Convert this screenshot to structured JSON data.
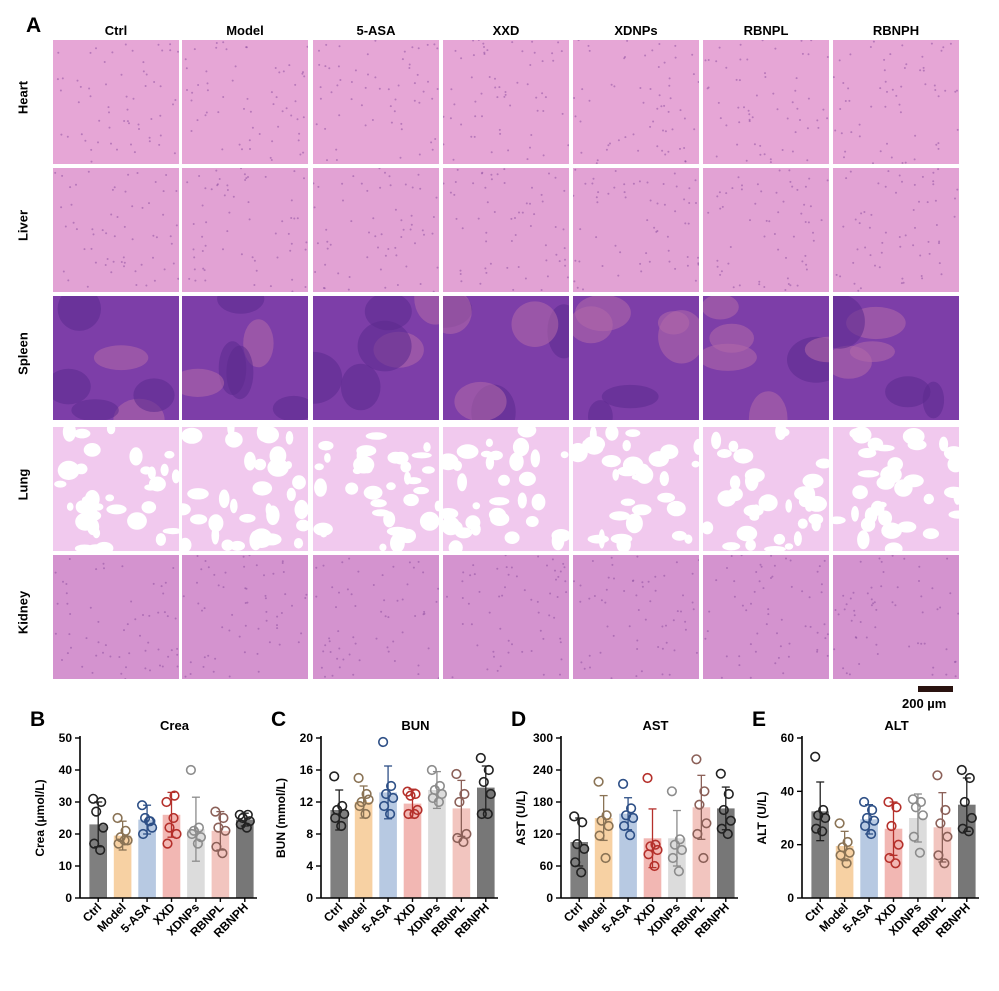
{
  "panel_a": {
    "letter": "A",
    "columns": [
      "Ctrl",
      "Model",
      "5-ASA",
      "XXD",
      "XDNPs",
      "RBNPL",
      "RBNPH"
    ],
    "rows": [
      {
        "name": "Heart",
        "tint": "#e6a6d6"
      },
      {
        "name": "Liver",
        "tint": "#e2a2d4"
      },
      {
        "name": "Spleen",
        "tint": "#7d3ea8"
      },
      {
        "name": "Lung",
        "tint": "#f1c9ee"
      },
      {
        "name": "Kidney",
        "tint": "#d493cf"
      }
    ],
    "scale_bar": "200 µm"
  },
  "colors": {
    "Ctrl": "#7f7f7f",
    "Model": "#f7d1a3",
    "5-ASA": "#b7c9e2",
    "XXD": "#f2b7b3",
    "XDNPs": "#dcdcdc",
    "RBNPL": "#f2c5bf",
    "RBNPH": "#777777"
  },
  "point_colors": {
    "Ctrl": "#222222",
    "Model": "#8a7355",
    "5-ASA": "#2d4f86",
    "XXD": "#b5302b",
    "XDNPs": "#8c8c8c",
    "RBNPL": "#8b6058",
    "RBNPH": "#222222"
  },
  "chart_data": [
    {
      "letter": "B",
      "type": "bar",
      "title": "Crea",
      "ylabel": "Crea (μmol/L)",
      "categories": [
        "Ctrl",
        "Model",
        "5-ASA",
        "XXD",
        "XDNPs",
        "RBNPL",
        "RBNPH"
      ],
      "ylim": [
        0,
        50
      ],
      "yticks": [
        0,
        10,
        20,
        30,
        40,
        50
      ],
      "values": [
        23,
        19.5,
        24.5,
        26,
        21.5,
        21,
        24.5
      ],
      "sd": [
        7,
        4.5,
        4.5,
        7,
        10,
        6,
        2
      ],
      "points": [
        [
          31,
          30,
          27,
          22,
          17,
          15
        ],
        [
          25,
          21,
          19,
          18,
          17,
          18
        ],
        [
          29,
          24,
          25,
          22,
          20,
          24
        ],
        [
          30,
          32,
          22,
          20,
          17,
          25
        ],
        [
          40,
          22,
          21,
          19,
          20,
          17
        ],
        [
          27,
          25,
          22,
          21,
          16,
          14
        ],
        [
          26,
          26,
          25,
          24,
          23,
          22
        ]
      ]
    },
    {
      "letter": "C",
      "type": "bar",
      "title": "BUN",
      "ylabel": "BUN (mmol/L)",
      "categories": [
        "Ctrl",
        "Model",
        "5-ASA",
        "XXD",
        "XDNPs",
        "RBNPL",
        "RBNPH"
      ],
      "ylim": [
        0,
        20
      ],
      "yticks": [
        0,
        4,
        8,
        12,
        16,
        20
      ],
      "values": [
        11,
        12,
        13.2,
        11.8,
        13.5,
        11.2,
        13.8
      ],
      "sd": [
        2.5,
        2,
        3.3,
        1.8,
        2.3,
        3.5,
        2.7
      ],
      "points": [
        [
          15.2,
          11.5,
          11,
          10.5,
          10,
          9
        ],
        [
          15,
          13,
          12,
          12.3,
          11.5,
          10.5
        ],
        [
          19.5,
          14,
          13,
          12.5,
          11.5,
          10.5
        ],
        [
          13.3,
          13,
          12.8,
          11,
          10.5,
          10.5
        ],
        [
          16,
          14,
          13.5,
          13,
          12.5,
          12
        ],
        [
          15.5,
          13,
          12,
          8,
          7.5,
          7
        ],
        [
          17.5,
          16,
          14.5,
          13,
          10.5,
          10.5
        ]
      ]
    },
    {
      "letter": "D",
      "type": "bar",
      "title": "AST",
      "ylabel": "AST (U/L)",
      "categories": [
        "Ctrl",
        "Model",
        "5-ASA",
        "XXD",
        "XDNPs",
        "RBNPL",
        "RBNPH"
      ],
      "ylim": [
        0,
        300
      ],
      "yticks": [
        0,
        60,
        120,
        180,
        240,
        300
      ],
      "values": [
        105,
        150,
        158,
        112,
        112,
        170,
        168
      ],
      "sd": [
        45,
        42,
        30,
        55,
        52,
        60,
        40
      ],
      "points": [
        [
          153,
          142,
          101,
          92,
          67,
          48
        ],
        [
          218,
          155,
          145,
          135,
          117,
          75
        ],
        [
          214,
          168,
          155,
          150,
          135,
          118
        ],
        [
          225,
          100,
          97,
          90,
          82,
          60
        ],
        [
          200,
          110,
          100,
          90,
          75,
          50
        ],
        [
          260,
          200,
          175,
          140,
          120,
          75
        ],
        [
          233,
          195,
          165,
          145,
          130,
          120
        ]
      ]
    },
    {
      "letter": "E",
      "type": "bar",
      "title": "ALT",
      "ylabel": "ALT (U/L)",
      "categories": [
        "Ctrl",
        "Model",
        "5-ASA",
        "XXD",
        "XDNPs",
        "RBNPL",
        "RBNPH"
      ],
      "ylim": [
        0,
        60
      ],
      "yticks": [
        0,
        20,
        40,
        60
      ],
      "values": [
        32.5,
        19.5,
        29.5,
        26,
        30,
        26.5,
        35
      ],
      "sd": [
        11,
        5.5,
        5.5,
        10,
        9,
        13,
        10
      ],
      "points": [
        [
          53,
          33,
          31,
          30,
          26,
          25
        ],
        [
          28,
          21,
          19,
          17,
          16,
          13
        ],
        [
          36,
          33,
          30,
          29,
          27,
          24
        ],
        [
          36,
          34,
          27,
          20,
          15,
          13
        ],
        [
          37,
          36,
          34,
          31,
          23,
          17
        ],
        [
          46,
          33,
          28,
          23,
          16,
          13
        ],
        [
          48,
          45,
          36,
          30,
          26,
          25
        ]
      ]
    }
  ]
}
